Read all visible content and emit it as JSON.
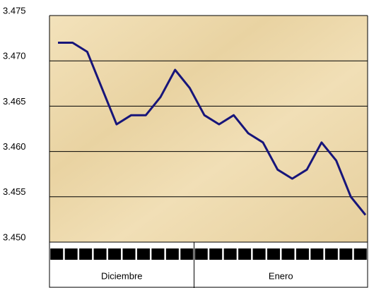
{
  "chart_data": {
    "type": "line",
    "categories": [
      null,
      null,
      null,
      null,
      null,
      null,
      null,
      null,
      null,
      null,
      null,
      null,
      null,
      null,
      null,
      null,
      null,
      null,
      null,
      null,
      null,
      null
    ],
    "category_groups": [
      "Diciembre",
      "Enero"
    ],
    "series": [
      {
        "color": "#17157a",
        "values": [
          3.472,
          3.472,
          3.471,
          3.467,
          3.463,
          3.464,
          3.464,
          3.466,
          3.469,
          3.467,
          3.464,
          3.463,
          3.464,
          3.462,
          3.461,
          3.458,
          3.457,
          3.458,
          3.461,
          3.459,
          3.455,
          3.453
        ]
      }
    ],
    "ylim": [
      3.45,
      3.475
    ],
    "yticks": [
      {
        "value": 3.45,
        "label": "3.450"
      },
      3.455,
      {
        "value": 3.46,
        "label": "3.460"
      },
      3.465,
      {
        "value": 3.47,
        "label": "3.470"
      },
      3.475
    ],
    "grid": true
  }
}
